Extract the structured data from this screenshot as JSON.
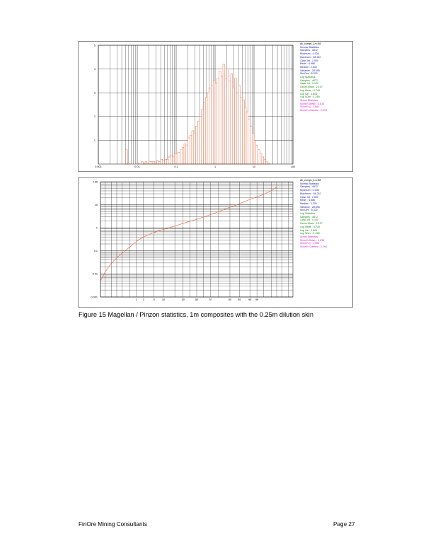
{
  "chart_data": [
    {
      "type": "bar",
      "title": "All_comps_1m.f55",
      "xscale": "log",
      "xlim": [
        0.001,
        100
      ],
      "ylim": [
        0,
        5
      ],
      "x_ticks": [
        "0.001",
        "0.01",
        "0.1",
        "1",
        "10",
        "100"
      ],
      "y_ticks": [
        "1",
        "2",
        "3",
        "4",
        "5"
      ],
      "bin_start_log10": -3,
      "bin_width_log10": 0.05,
      "values": [
        0,
        0,
        0,
        0,
        0,
        0,
        0,
        0,
        0,
        0,
        0,
        0,
        0,
        0,
        0.6,
        0.05,
        0,
        0,
        0,
        0,
        0.05,
        0,
        0.1,
        0.05,
        0.1,
        0.05,
        0.1,
        0.1,
        0.1,
        0.05,
        0.15,
        0.1,
        0.2,
        0.15,
        0.2,
        0.2,
        0.3,
        0.35,
        0.3,
        0.45,
        0.45,
        0.5,
        0.6,
        0.7,
        0.85,
        0.8,
        1.1,
        1.2,
        1.4,
        1.3,
        1.6,
        1.8,
        2.0,
        2.3,
        2.6,
        2.8,
        3.0,
        3.2,
        3.3,
        3.5,
        3.4,
        3.6,
        3.9,
        3.7,
        4.2,
        3.6,
        4.0,
        3.5,
        3.8,
        3.2,
        3.6,
        3.0,
        3.3,
        2.8,
        2.7,
        2.4,
        2.2,
        1.9,
        1.6,
        1.3,
        1.0,
        0.8,
        0.6,
        0.45,
        0.3,
        0.2,
        0.1,
        0.05,
        0,
        0,
        0,
        0,
        0,
        0,
        0,
        0,
        0,
        0,
        0,
        0
      ],
      "legend": {
        "file": "All_comps_1m.f55",
        "normal": [
          "Normal Statistics",
          "Samples : 4872",
          "Minimum : 0.005",
          "Maximum : 58.210",
          "Class Int : 2.000",
          "Mean : 4.586",
          "Median : 2.330",
          "Variance : 28.595",
          "Std.Dev : 5.320"
        ],
        "log": [
          "Log Statistics",
          "Samples : 4872",
          "Class Int : 0.100",
          "Geom.Mean : 2.107",
          "Log Mean : 0.745",
          "Log Var : 1.661",
          "Log SDev : 1.289"
        ],
        "sichel": [
          "Sichel Statistics",
          "Sichel's Mean : 4.833",
          "Sichel's γ : 1.860",
          "Sichel's Gamma : 2.294"
        ]
      }
    },
    {
      "type": "line",
      "title": "All_comps_1m.f55",
      "xscale": "probability",
      "yscale": "log",
      "ylim": [
        0.001,
        100
      ],
      "y_ticks": [
        "0.001",
        "0.01",
        "0.1",
        "1",
        "10",
        "100"
      ],
      "x_ticks": [
        "1",
        "2",
        "5",
        "10",
        "30",
        "50",
        "70",
        "90",
        "95",
        "98",
        "99"
      ],
      "series": [
        {
          "name": "cumulative",
          "x": [
            0.01,
            0.02,
            0.05,
            0.1,
            0.2,
            0.5,
            1,
            2,
            5,
            10,
            20,
            30,
            40,
            50,
            60,
            70,
            80,
            90,
            95,
            98,
            99,
            99.5,
            99.8,
            99.9
          ],
          "y": [
            0.005,
            0.012,
            0.03,
            0.05,
            0.08,
            0.15,
            0.26,
            0.4,
            0.63,
            0.85,
            1.2,
            1.55,
            1.95,
            2.33,
            2.9,
            3.7,
            5.0,
            7.8,
            11,
            17,
            22,
            28,
            40,
            58
          ]
        }
      ],
      "legend": {
        "file": "All_comps_1m.f55",
        "normal": [
          "Normal Statistics",
          "Samples : 4872",
          "Minimum : 0.005",
          "Maximum : 58.210",
          "Class Int : 2.000",
          "Mean : 4.586",
          "Median : 2.330",
          "Variance : 28.595",
          "Std.Dev : 5.320"
        ],
        "log": [
          "Log Statistics",
          "Samples : 4872",
          "Class Int : 0.100",
          "Geom.Mean : 2.107",
          "Log Mean : 0.745",
          "Log Var : 1.661",
          "Log SDev : 1.289"
        ],
        "sichel": [
          "Sichel Statistics",
          "Sichel's Mean : 4.833",
          "Sichel's γ : 1.860",
          "Sichel's Gamma : 2.294"
        ]
      }
    }
  ],
  "colors": {
    "bar": "#e8734f",
    "line": "#e8734f",
    "grid": "#000000"
  },
  "caption": "Figure 15 Magellan / Pinzon statistics, 1m composites with the 0.25m dilution skin",
  "footer": {
    "company": "FinOre Mining Consultants",
    "page": "Page 27"
  }
}
